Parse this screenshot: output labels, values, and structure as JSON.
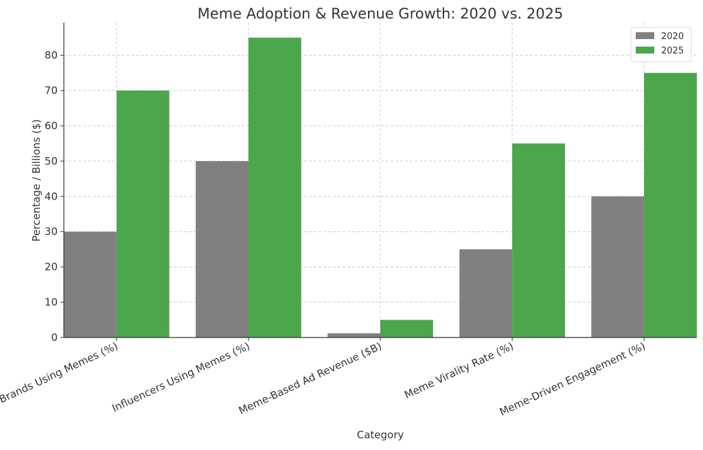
{
  "chart_data": {
    "type": "bar",
    "title": "Meme Adoption & Revenue Growth: 2020 vs. 2025",
    "xlabel": "Category",
    "ylabel": "Percentage / Billions ($)",
    "categories": [
      "Brands Using Memes (%)",
      "Influencers Using Memes (%)",
      "Meme-Based Ad Revenue ($B)",
      "Meme Virality Rate (%)",
      "Meme-Driven Engagement (%)"
    ],
    "series": [
      {
        "name": "2020",
        "color": "#808080",
        "values": [
          30,
          50,
          1.2,
          25,
          40
        ]
      },
      {
        "name": "2025",
        "color": "#4CA64C",
        "values": [
          70,
          85,
          5,
          55,
          75
        ]
      }
    ],
    "yticks": [
      "0",
      "10",
      "20",
      "30",
      "40",
      "50",
      "60",
      "70",
      "80"
    ],
    "ylim": [
      0,
      89.25
    ],
    "grid": true,
    "legend_position": "top-right"
  }
}
